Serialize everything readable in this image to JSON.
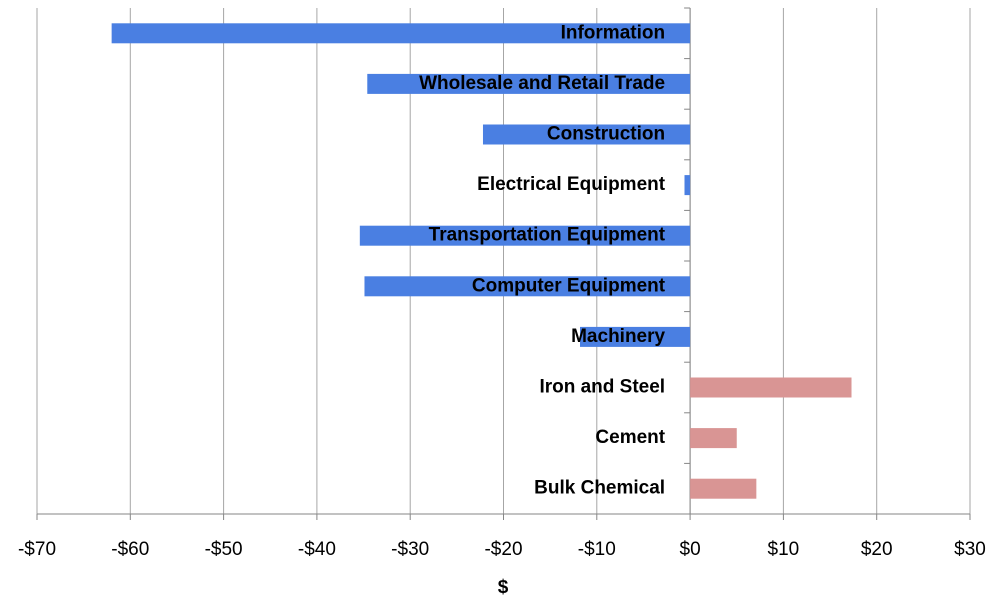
{
  "chart_data": {
    "type": "hbar",
    "categories": [
      "Information",
      "Wholesale and Retail Trade",
      "Construction",
      "Electrical Equipment",
      "Transportation Equipment",
      "Computer Equipment",
      "Machinery",
      "Iron and Steel",
      "Cement",
      "Bulk Chemical"
    ],
    "values": [
      -62.0,
      -34.6,
      -22.2,
      -0.6,
      -35.4,
      -34.9,
      -11.8,
      17.3,
      5.0,
      7.1
    ],
    "colors": [
      "#4a7fe2",
      "#4a7fe2",
      "#4a7fe2",
      "#4a7fe2",
      "#4a7fe2",
      "#4a7fe2",
      "#4a7fe2",
      "#d99594",
      "#d99594",
      "#d99594"
    ],
    "xlabel": "$",
    "xlim": [
      -70,
      30
    ],
    "xticks": [
      {
        "value": -70,
        "label": "-$70"
      },
      {
        "value": -60,
        "label": "-$60"
      },
      {
        "value": -50,
        "label": "-$50"
      },
      {
        "value": -40,
        "label": "-$40"
      },
      {
        "value": -30,
        "label": "-$30"
      },
      {
        "value": -20,
        "label": "-$20"
      },
      {
        "value": -10,
        "label": "-$10"
      },
      {
        "value": 0,
        "label": "$0"
      },
      {
        "value": 10,
        "label": "$10"
      },
      {
        "value": 20,
        "label": "$20"
      },
      {
        "value": 30,
        "label": "$30"
      }
    ],
    "grid": true
  }
}
